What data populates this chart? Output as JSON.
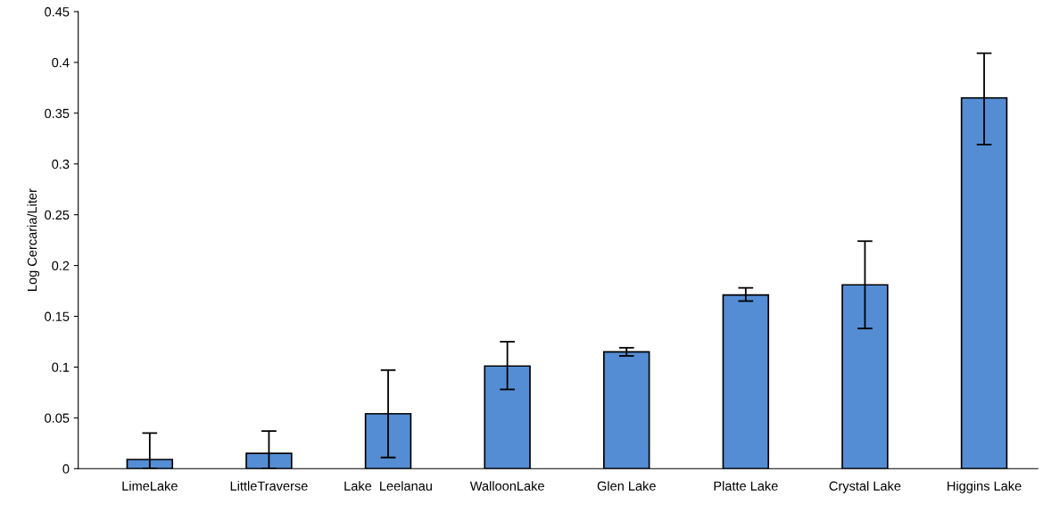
{
  "chart_data": {
    "type": "bar",
    "ylabel": "Log Cercaria/Liter",
    "categories": [
      "LimeLake",
      "LittleTraverse",
      "Lake  Leelanau",
      "WalloonLake",
      "Glen Lake",
      "Platte Lake",
      "Crystal Lake",
      "Higgins Lake"
    ],
    "values": [
      0.009,
      0.015,
      0.054,
      0.101,
      0.115,
      0.171,
      0.181,
      0.365
    ],
    "errors": [
      [
        0,
        0.035
      ],
      [
        0,
        0.037
      ],
      [
        0.011,
        0.097
      ],
      [
        0.078,
        0.125
      ],
      [
        0.111,
        0.119
      ],
      [
        0.165,
        0.178
      ],
      [
        0.138,
        0.224
      ],
      [
        0.319,
        0.409
      ]
    ],
    "color": "#548dd4",
    "ylim": [
      0,
      0.45
    ],
    "yticks": [
      0,
      0.05,
      0.1,
      0.15,
      0.2,
      0.25,
      0.3,
      0.35,
      0.4,
      0.45
    ],
    "grid": false
  }
}
